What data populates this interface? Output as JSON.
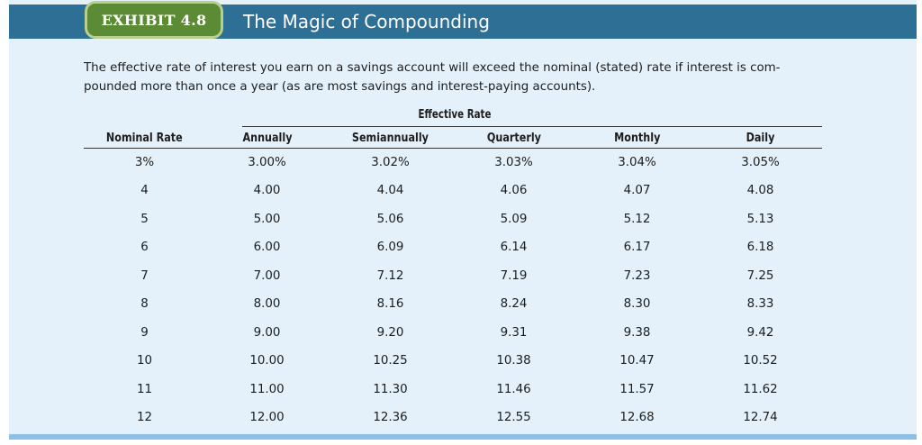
{
  "exhibit": {
    "tag": "EXHIBIT 4.8",
    "title": "The Magic of Compounding",
    "intro": "The effective rate of interest you earn on a savings account will exceed the nominal (stated) rate if interest is com-pounded more than once a year (as are most savings and interest-paying accounts).",
    "colors": {
      "header_bar": "#2e6f96",
      "tag_fill": "#5b8c35",
      "tag_border": "#b9d08d",
      "panel": "#e4f1fb",
      "bottom_bar": "#8ec0e6"
    }
  },
  "table": {
    "group_header": "Effective Rate",
    "columns": [
      "Nominal Rate",
      "Annually",
      "Semiannually",
      "Quarterly",
      "Monthly",
      "Daily"
    ],
    "rows": [
      [
        "3%",
        "3.00%",
        "3.02%",
        "3.03%",
        "3.04%",
        "3.05%"
      ],
      [
        "4",
        "4.00",
        "4.04",
        "4.06",
        "4.07",
        "4.08"
      ],
      [
        "5",
        "5.00",
        "5.06",
        "5.09",
        "5.12",
        "5.13"
      ],
      [
        "6",
        "6.00",
        "6.09",
        "6.14",
        "6.17",
        "6.18"
      ],
      [
        "7",
        "7.00",
        "7.12",
        "7.19",
        "7.23",
        "7.25"
      ],
      [
        "8",
        "8.00",
        "8.16",
        "8.24",
        "8.30",
        "8.33"
      ],
      [
        "9",
        "9.00",
        "9.20",
        "9.31",
        "9.38",
        "9.42"
      ],
      [
        "10",
        "10.00",
        "10.25",
        "10.38",
        "10.47",
        "10.52"
      ],
      [
        "11",
        "11.00",
        "11.30",
        "11.46",
        "11.57",
        "11.62"
      ],
      [
        "12",
        "12.00",
        "12.36",
        "12.55",
        "12.68",
        "12.74"
      ]
    ]
  }
}
